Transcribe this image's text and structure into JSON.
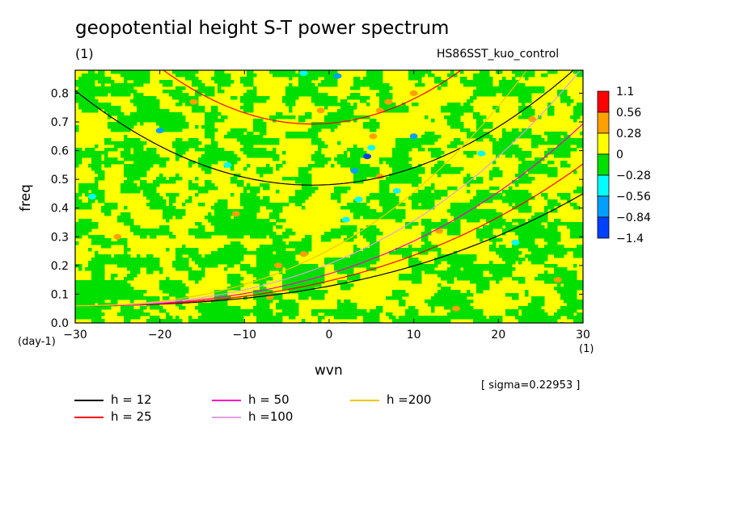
{
  "title": "geopotential height S-T power spectrum",
  "subtitle_left": "(1)",
  "subtitle_right": "HS86SST_kuo_control",
  "sigma_note": "[ sigma=0.22953 ]",
  "chart_data": {
    "type": "heatmap",
    "xlabel": "wvn",
    "ylabel": "freq",
    "x_unit": "(1)",
    "y_unit": "(day-1)",
    "xlim": [
      -30,
      30
    ],
    "ylim": [
      0,
      0.88
    ],
    "x_ticks": [
      -30,
      -20,
      -10,
      0,
      10,
      20,
      30
    ],
    "y_ticks": [
      0.0,
      0.1,
      0.2,
      0.3,
      0.4,
      0.5,
      0.6,
      0.7,
      0.8
    ],
    "colorbar": {
      "levels": [
        "1.1",
        "0.56",
        "0.28",
        "0",
        "-0.28",
        "-0.56",
        "-0.84",
        "-1.4"
      ],
      "colors": [
        "#ff0000",
        "#ffa000",
        "#ffff00",
        "#00e000",
        "#00ffff",
        "#00a0ff",
        "#0040ff"
      ]
    },
    "field_description": "dominated by values between 0 and 0.28 (yellow) and -0.28 to 0 (green), with isolated extremes concentrated near wvn 0 to 10",
    "dispersion_curves": [
      {
        "name": "h = 12",
        "color": "#000000"
      },
      {
        "name": "h = 25",
        "color": "#ff0000"
      },
      {
        "name": "h = 50",
        "color": "#ff00c0"
      },
      {
        "name": "h =100",
        "color": "#e0a0e0"
      },
      {
        "name": "h =200",
        "color": "#f0c800"
      }
    ]
  }
}
